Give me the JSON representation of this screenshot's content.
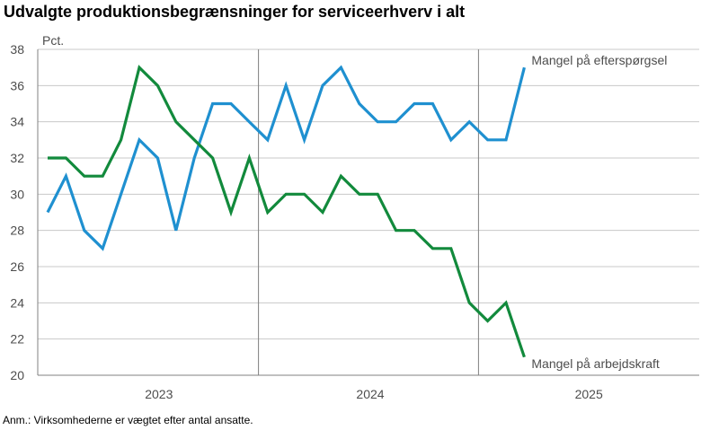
{
  "chart_data": {
    "type": "line",
    "title": "Udvalgte produktionsbegrænsninger for serviceerhverv i alt",
    "ylabel": "Pct.",
    "ylim": [
      20,
      38
    ],
    "yticks": [
      20,
      22,
      24,
      26,
      28,
      30,
      32,
      34,
      36,
      38
    ],
    "year_labels": [
      "2023",
      "2024",
      "2025"
    ],
    "grid": true,
    "series": [
      {
        "name": "Mangel på efterspørgsel",
        "color": "#1f90d0",
        "values": [
          29,
          31,
          28,
          27,
          30,
          33,
          32,
          28,
          32,
          35,
          35,
          34,
          33,
          36,
          33,
          36,
          37,
          35,
          34,
          34,
          35,
          35,
          33,
          34,
          33,
          33,
          37
        ]
      },
      {
        "name": "Mangel på arbejdskraft",
        "color": "#128a3c",
        "values": [
          32,
          32,
          31,
          31,
          33,
          37,
          36,
          34,
          33,
          32,
          29,
          32,
          29,
          30,
          30,
          29,
          31,
          30,
          30,
          28,
          28,
          27,
          27,
          24,
          23,
          24,
          21
        ]
      }
    ]
  },
  "note": "Anm.: Virksomhederne er vægtet efter antal ansatte."
}
